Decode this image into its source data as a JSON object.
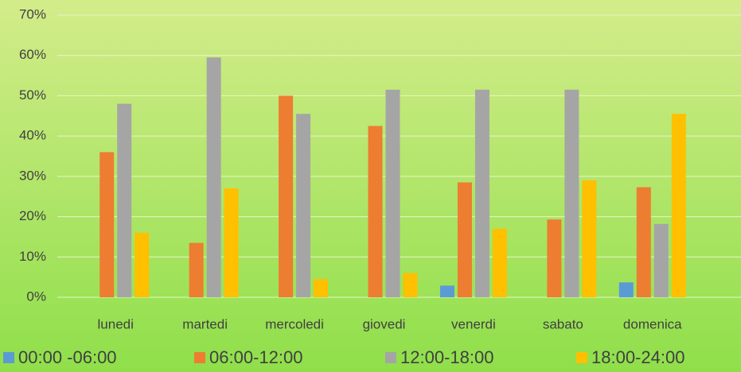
{
  "chart_data": {
    "type": "bar",
    "categories": [
      "lunedi",
      "martedi",
      "mercoledi",
      "giovedi",
      "venerdi",
      "sabato",
      "domenica"
    ],
    "series": [
      {
        "name": "00:00 -06:00",
        "color": "#5b9bd5",
        "values": [
          0,
          0,
          0,
          0,
          2.9,
          0,
          3.7
        ]
      },
      {
        "name": "06:00-12:00",
        "color": "#ed7d31",
        "values": [
          36,
          13.5,
          50,
          42.5,
          28.5,
          19.3,
          27.3
        ]
      },
      {
        "name": "12:00-18:00",
        "color": "#a5a5a5",
        "values": [
          48,
          59.5,
          45.5,
          51.5,
          51.5,
          51.5,
          18.2
        ]
      },
      {
        "name": "18:00-24:00",
        "color": "#ffc000",
        "values": [
          16,
          27,
          4.5,
          6,
          17,
          29,
          45.5
        ]
      }
    ],
    "ylim": [
      0,
      70
    ],
    "yticks": [
      {
        "value": 0,
        "label": "0%"
      },
      {
        "value": 10,
        "label": "10%"
      },
      {
        "value": 20,
        "label": "20%"
      },
      {
        "value": 30,
        "label": "30%"
      },
      {
        "value": 40,
        "label": "40%"
      },
      {
        "value": 50,
        "label": "50%"
      },
      {
        "value": 60,
        "label": "60%"
      },
      {
        "value": 70,
        "label": "70%"
      }
    ],
    "grid": true,
    "legend": "bottom"
  }
}
